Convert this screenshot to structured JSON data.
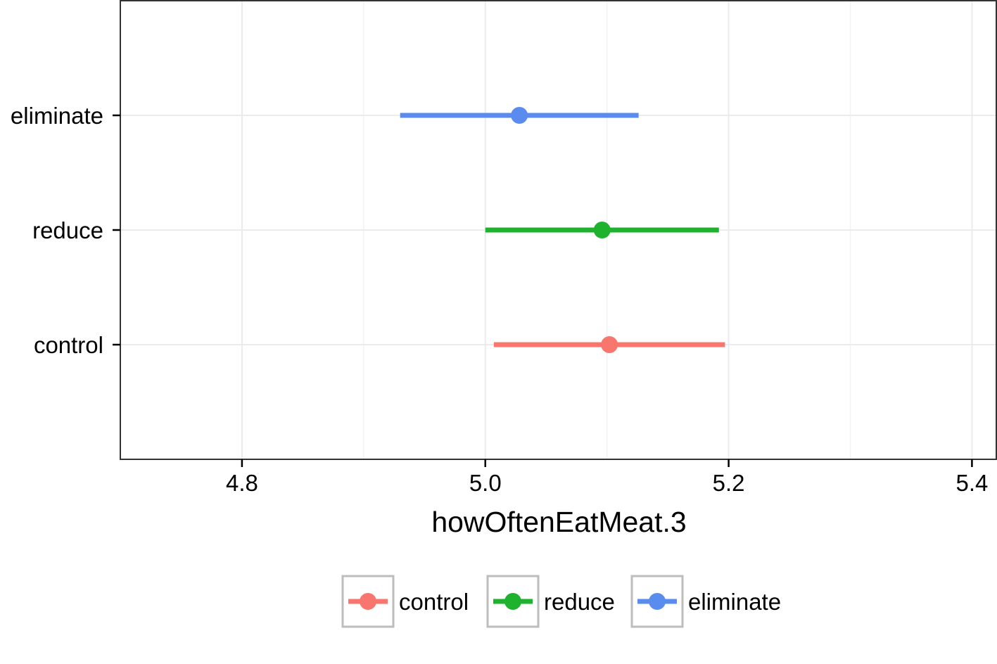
{
  "chart_data": {
    "type": "pointrange",
    "orientation": "horizontal",
    "xlabel": "howOftenEatMeat.3",
    "ylabel": "",
    "xlim": [
      4.7,
      5.42
    ],
    "xticks": [
      4.8,
      5.0,
      5.2,
      5.4
    ],
    "xtick_labels": [
      "4.8",
      "5.0",
      "5.2",
      "5.4"
    ],
    "categories": [
      "control",
      "reduce",
      "eliminate"
    ],
    "series": [
      {
        "name": "control",
        "estimate": 5.102,
        "lower": 5.007,
        "upper": 5.197,
        "color": "#F8766D"
      },
      {
        "name": "reduce",
        "estimate": 5.096,
        "lower": 5.0,
        "upper": 5.192,
        "color": "#1FB22F"
      },
      {
        "name": "eliminate",
        "estimate": 5.028,
        "lower": 4.93,
        "upper": 5.126,
        "color": "#5A8CF0"
      }
    ],
    "grid": true,
    "legend_position": "bottom",
    "legend": [
      "control",
      "reduce",
      "eliminate"
    ]
  }
}
